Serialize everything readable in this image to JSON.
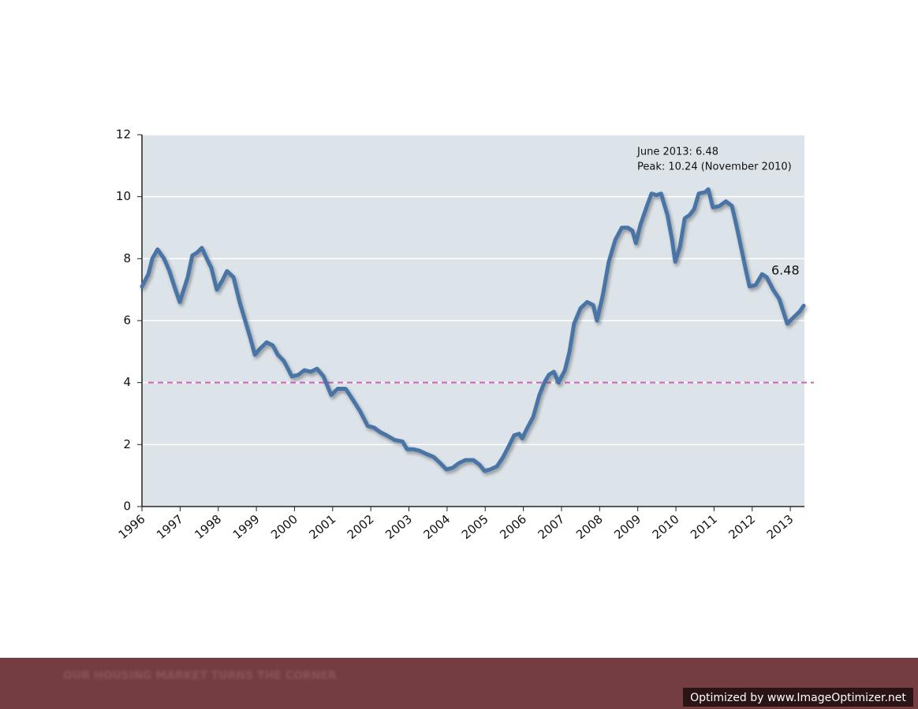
{
  "chart_data": {
    "type": "line",
    "x": [
      1996.0,
      1996.17,
      1996.27,
      1996.41,
      1996.58,
      1996.72,
      1996.85,
      1996.99,
      1997.2,
      1997.32,
      1997.45,
      1997.57,
      1997.7,
      1997.82,
      1997.96,
      1998.11,
      1998.23,
      1998.4,
      1998.56,
      1998.73,
      1998.85,
      1998.96,
      1999.1,
      1999.27,
      1999.43,
      1999.56,
      1999.72,
      1999.93,
      2000.1,
      2000.26,
      2000.43,
      2000.59,
      2000.76,
      2000.96,
      2001.13,
      2001.34,
      2001.5,
      2001.71,
      2001.92,
      2002.08,
      2002.25,
      2002.41,
      2002.62,
      2002.83,
      2002.95,
      2003.11,
      2003.28,
      2003.45,
      2003.65,
      2003.82,
      2003.98,
      2004.15,
      2004.31,
      2004.48,
      2004.69,
      2004.85,
      2004.98,
      2005.14,
      2005.31,
      2005.47,
      2005.64,
      2005.76,
      2005.89,
      2005.97,
      2006.09,
      2006.26,
      2006.42,
      2006.55,
      2006.67,
      2006.8,
      2006.92,
      2007.09,
      2007.21,
      2007.33,
      2007.5,
      2007.67,
      2007.83,
      2007.93,
      2008.08,
      2008.24,
      2008.41,
      2008.58,
      2008.74,
      2008.86,
      2008.95,
      2009.07,
      2009.24,
      2009.36,
      2009.49,
      2009.61,
      2009.78,
      2009.9,
      2009.98,
      2010.11,
      2010.23,
      2010.35,
      2010.48,
      2010.6,
      2010.77,
      2010.85,
      2010.97,
      2011.14,
      2011.31,
      2011.47,
      2011.6,
      2011.72,
      2011.84,
      2011.93,
      2012.09,
      2012.26,
      2012.38,
      2012.55,
      2012.71,
      2012.92,
      2013.08,
      2013.25,
      2013.35
    ],
    "values": [
      7.1,
      7.5,
      8.0,
      8.3,
      8.0,
      7.6,
      7.1,
      6.6,
      7.4,
      8.1,
      8.2,
      8.35,
      8.0,
      7.7,
      7.0,
      7.3,
      7.6,
      7.4,
      6.6,
      5.9,
      5.4,
      4.9,
      5.1,
      5.3,
      5.2,
      4.9,
      4.7,
      4.2,
      4.25,
      4.4,
      4.35,
      4.45,
      4.2,
      3.6,
      3.8,
      3.8,
      3.5,
      3.1,
      2.6,
      2.55,
      2.4,
      2.3,
      2.15,
      2.1,
      1.85,
      1.85,
      1.8,
      1.7,
      1.6,
      1.4,
      1.2,
      1.25,
      1.4,
      1.5,
      1.5,
      1.35,
      1.15,
      1.2,
      1.3,
      1.6,
      2.0,
      2.3,
      2.35,
      2.2,
      2.5,
      2.9,
      3.6,
      4.0,
      4.25,
      4.35,
      4.0,
      4.4,
      5.0,
      5.9,
      6.4,
      6.6,
      6.5,
      6.0,
      6.8,
      7.9,
      8.6,
      9.0,
      9.0,
      8.9,
      8.5,
      9.1,
      9.7,
      10.1,
      10.05,
      10.1,
      9.4,
      8.6,
      7.9,
      8.4,
      9.3,
      9.4,
      9.6,
      10.1,
      10.15,
      10.24,
      9.65,
      9.7,
      9.85,
      9.7,
      9.0,
      8.3,
      7.6,
      7.1,
      7.15,
      7.5,
      7.4,
      7.0,
      6.7,
      5.9,
      6.1,
      6.3,
      6.48
    ],
    "color": "#4a74a6",
    "xlim": [
      1996,
      2013.37
    ],
    "xticks": [
      1996,
      1997,
      1998,
      1999,
      2000,
      2001,
      2002,
      2003,
      2004,
      2005,
      2006,
      2007,
      2008,
      2009,
      2010,
      2011,
      2012,
      2013
    ],
    "ylim": [
      0,
      12
    ],
    "yticks": [
      0,
      2,
      4,
      6,
      8,
      10,
      12
    ],
    "grid": true,
    "reference_line": {
      "value": 4,
      "color": "#d060b8"
    },
    "annotations": [
      "June 2013: 6.48",
      "Peak: 10.24 (November 2010)",
      "6.48"
    ]
  },
  "footer": {
    "title": "OUR HOUSING MARKET TURNS THE CORNER",
    "badge": "Optimized by www.ImageOptimizer.net"
  }
}
